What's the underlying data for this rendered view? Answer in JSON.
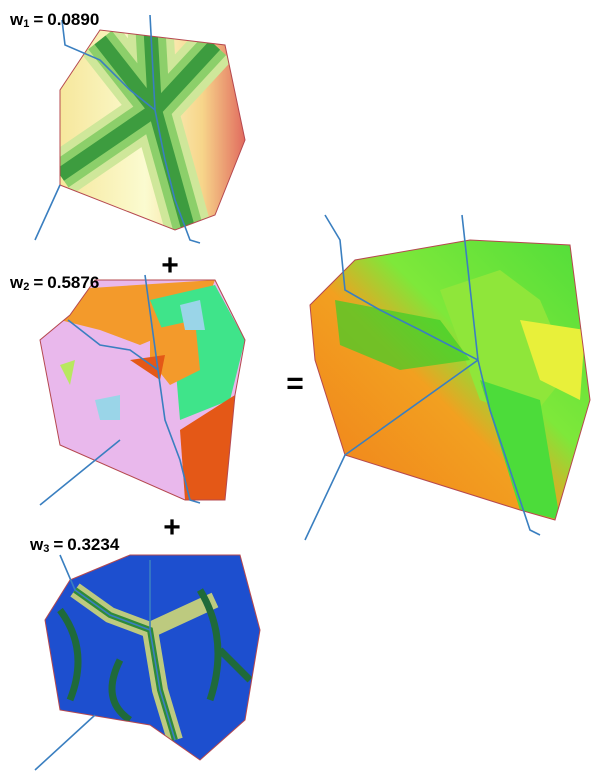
{
  "layers": [
    {
      "symbol": "w",
      "index": "1",
      "equals": "=",
      "weight": "0.0890"
    },
    {
      "symbol": "w",
      "index": "2",
      "equals": "=",
      "weight": "0.5876"
    },
    {
      "symbol": "w",
      "index": "3",
      "equals": "=",
      "weight": "0.3234"
    }
  ],
  "operators": [
    "+",
    "+"
  ],
  "result_operator": "="
}
